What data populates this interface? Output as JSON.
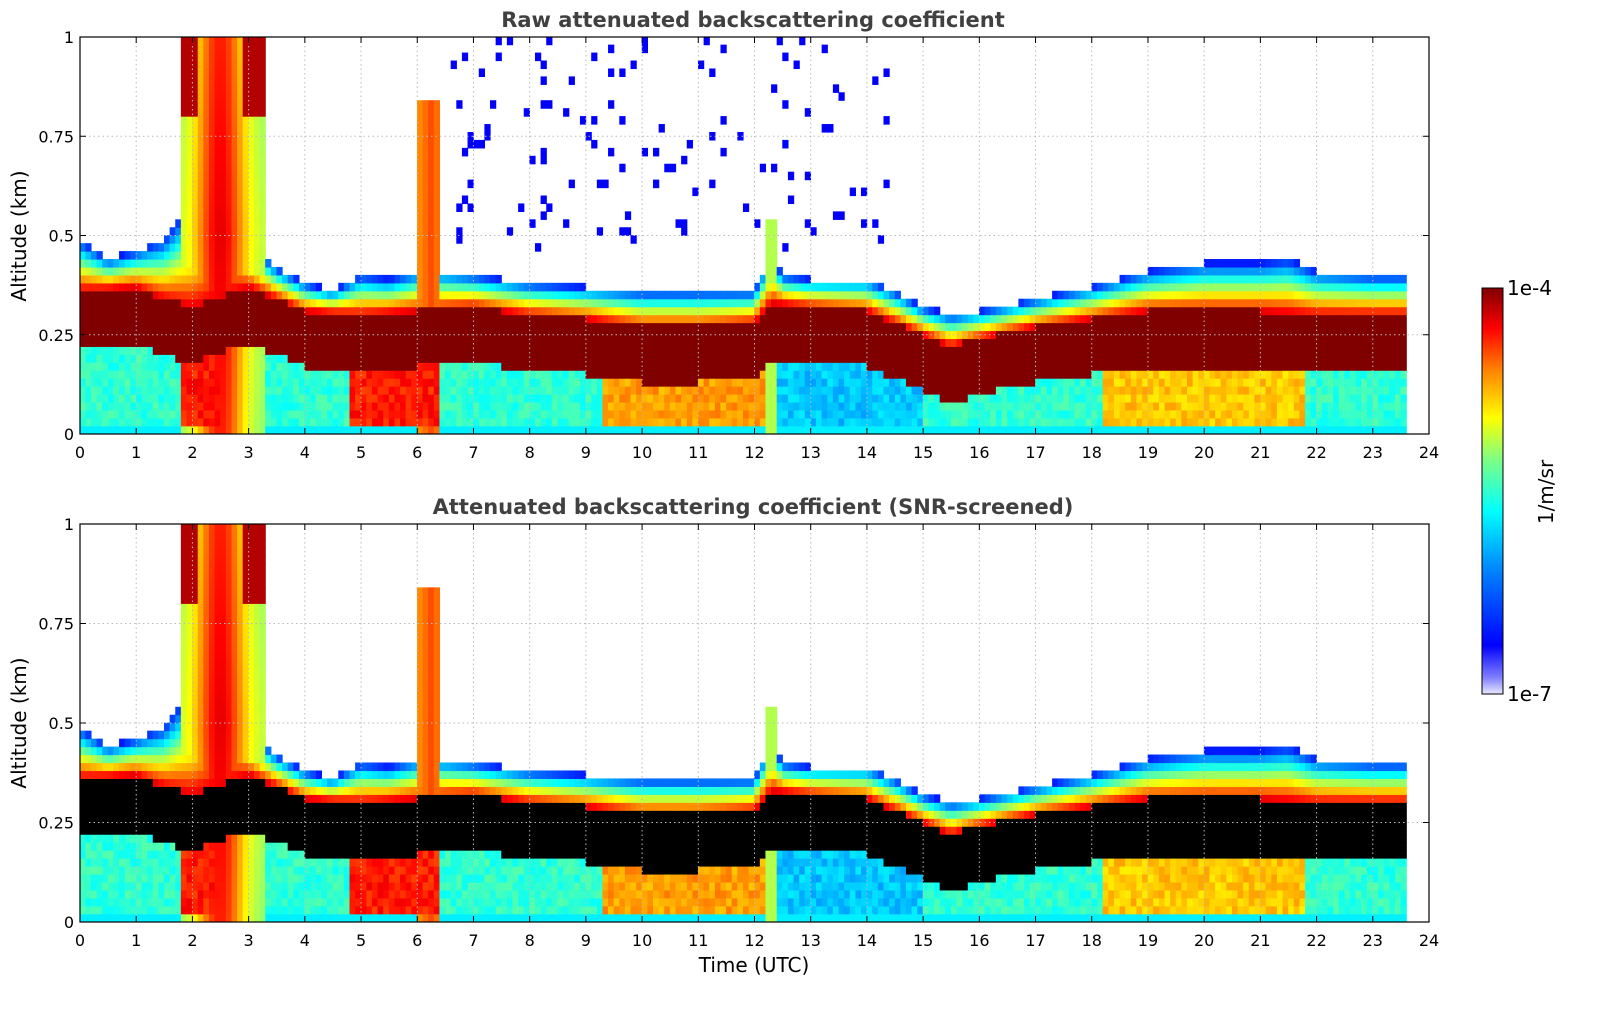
{
  "chart_data": [
    {
      "type": "heatmap",
      "title": "Raw attenuated backscattering coefficient",
      "xlabel": "",
      "ylabel": "Altitude (km)",
      "xlim": [
        0,
        24
      ],
      "ylim": [
        0,
        1
      ],
      "x_ticks": [
        "0",
        "1",
        "2",
        "3",
        "4",
        "5",
        "6",
        "7",
        "8",
        "9",
        "10",
        "11",
        "12",
        "13",
        "14",
        "15",
        "16",
        "17",
        "18",
        "19",
        "20",
        "21",
        "22",
        "23",
        "24"
      ],
      "y_ticks": [
        "0",
        "0.25",
        "0.5",
        "0.75",
        "1"
      ],
      "grid": true,
      "screened": false,
      "data_end_hour": 23.6,
      "layer_top_km": [
        [
          0,
          0.45
        ],
        [
          0.5,
          0.4
        ],
        [
          1,
          0.42
        ],
        [
          1.5,
          0.45
        ],
        [
          2,
          0.55
        ],
        [
          2.5,
          0.65
        ],
        [
          3,
          0.45
        ],
        [
          3.5,
          0.38
        ],
        [
          4,
          0.34
        ],
        [
          4.5,
          0.32
        ],
        [
          5,
          0.36
        ],
        [
          5.5,
          0.35
        ],
        [
          6,
          0.37
        ],
        [
          6.5,
          0.37
        ],
        [
          7,
          0.36
        ],
        [
          7.5,
          0.35
        ],
        [
          8,
          0.34
        ],
        [
          9,
          0.33
        ],
        [
          10,
          0.32
        ],
        [
          11,
          0.32
        ],
        [
          12,
          0.32
        ],
        [
          12.3,
          0.42
        ],
        [
          12.5,
          0.36
        ],
        [
          13,
          0.35
        ],
        [
          14,
          0.35
        ],
        [
          14.5,
          0.32
        ],
        [
          15,
          0.28
        ],
        [
          15.5,
          0.26
        ],
        [
          16,
          0.27
        ],
        [
          17,
          0.3
        ],
        [
          18,
          0.33
        ],
        [
          19,
          0.37
        ],
        [
          20,
          0.39
        ],
        [
          21,
          0.39
        ],
        [
          21.5,
          0.4
        ],
        [
          22,
          0.37
        ],
        [
          23,
          0.36
        ],
        [
          23.6,
          0.36
        ]
      ],
      "layer_center_km": [
        [
          0,
          0.29
        ],
        [
          1,
          0.3
        ],
        [
          1.5,
          0.27
        ],
        [
          2,
          0.25
        ],
        [
          3,
          0.3
        ],
        [
          3.5,
          0.27
        ],
        [
          4,
          0.24
        ],
        [
          5,
          0.23
        ],
        [
          6,
          0.24
        ],
        [
          7,
          0.25
        ],
        [
          8,
          0.23
        ],
        [
          9,
          0.22
        ],
        [
          10,
          0.2
        ],
        [
          11,
          0.2
        ],
        [
          12,
          0.21
        ],
        [
          12.3,
          0.26
        ],
        [
          13,
          0.25
        ],
        [
          14,
          0.24
        ],
        [
          15,
          0.18
        ],
        [
          15.5,
          0.15
        ],
        [
          16,
          0.17
        ],
        [
          17,
          0.2
        ],
        [
          18,
          0.22
        ],
        [
          19,
          0.24
        ],
        [
          20,
          0.24
        ],
        [
          21,
          0.24
        ],
        [
          22,
          0.23
        ],
        [
          23,
          0.23
        ],
        [
          23.6,
          0.23
        ]
      ],
      "layer_half_width_km": 0.07,
      "colorbar": {
        "label": "1/m/sr",
        "min_label": "1e-7",
        "max_label": "1e-4"
      }
    },
    {
      "type": "heatmap",
      "title": "Attenuated backscattering coefficient (SNR-screened)",
      "xlabel": "Time (UTC)",
      "ylabel": "Altitude (km)",
      "xlim": [
        0,
        24
      ],
      "ylim": [
        0,
        1
      ],
      "x_ticks": [
        "0",
        "1",
        "2",
        "3",
        "4",
        "5",
        "6",
        "7",
        "8",
        "9",
        "10",
        "11",
        "12",
        "13",
        "14",
        "15",
        "16",
        "17",
        "18",
        "19",
        "20",
        "21",
        "22",
        "23",
        "24"
      ],
      "y_ticks": [
        "0",
        "0.25",
        "0.5",
        "0.75",
        "1"
      ],
      "grid": true,
      "screened": true,
      "data_end_hour": 23.6,
      "colorbar": {
        "label": "1/m/sr",
        "min_label": "1e-7",
        "max_label": "1e-4"
      }
    }
  ],
  "colors": {
    "jet": [
      "#00008f",
      "#0000ff",
      "#0080ff",
      "#00ffff",
      "#80ff80",
      "#ffff00",
      "#ff8000",
      "#ff0000",
      "#800000"
    ],
    "saturated_screened": "#000000",
    "title_color": "#404040",
    "grid_color": "#bbbbbb"
  }
}
